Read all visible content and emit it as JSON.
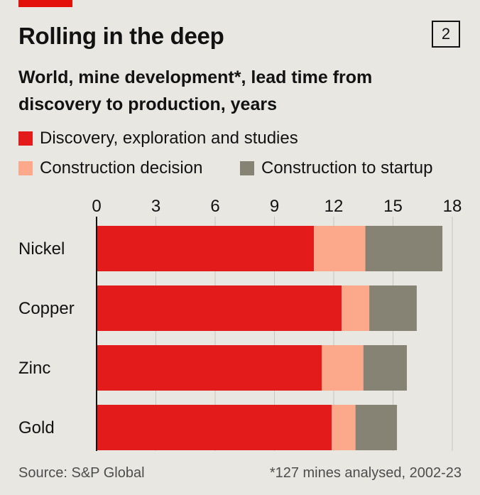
{
  "header": {
    "title": "Rolling in the deep",
    "chart_number": "2",
    "subtitle": "World, mine development*, lead time from discovery to production, years"
  },
  "footer": {
    "source": "Source: S&P Global",
    "note": "*127 mines analysed, 2002-23"
  },
  "colors": {
    "brand_red": "#e3120b",
    "discovery": "#e31b1b",
    "decision": "#fca98b",
    "startup": "#868274",
    "background": "#e9e7e1"
  },
  "chart_data": {
    "type": "bar",
    "orientation": "horizontal",
    "stacked": true,
    "categories": [
      "Nickel",
      "Copper",
      "Zinc",
      "Gold"
    ],
    "series": [
      {
        "name": "Discovery, exploration and studies",
        "values": [
          11.0,
          12.4,
          11.4,
          11.9
        ]
      },
      {
        "name": "Construction decision",
        "values": [
          2.6,
          1.4,
          2.1,
          1.2
        ]
      },
      {
        "name": "Construction to startup",
        "values": [
          3.9,
          2.4,
          2.2,
          2.1
        ]
      }
    ],
    "x_ticks": [
      "0",
      "3",
      "6",
      "9",
      "12",
      "15",
      "18"
    ],
    "xlim": [
      0,
      18
    ],
    "grid": true,
    "legend_position": "top"
  }
}
